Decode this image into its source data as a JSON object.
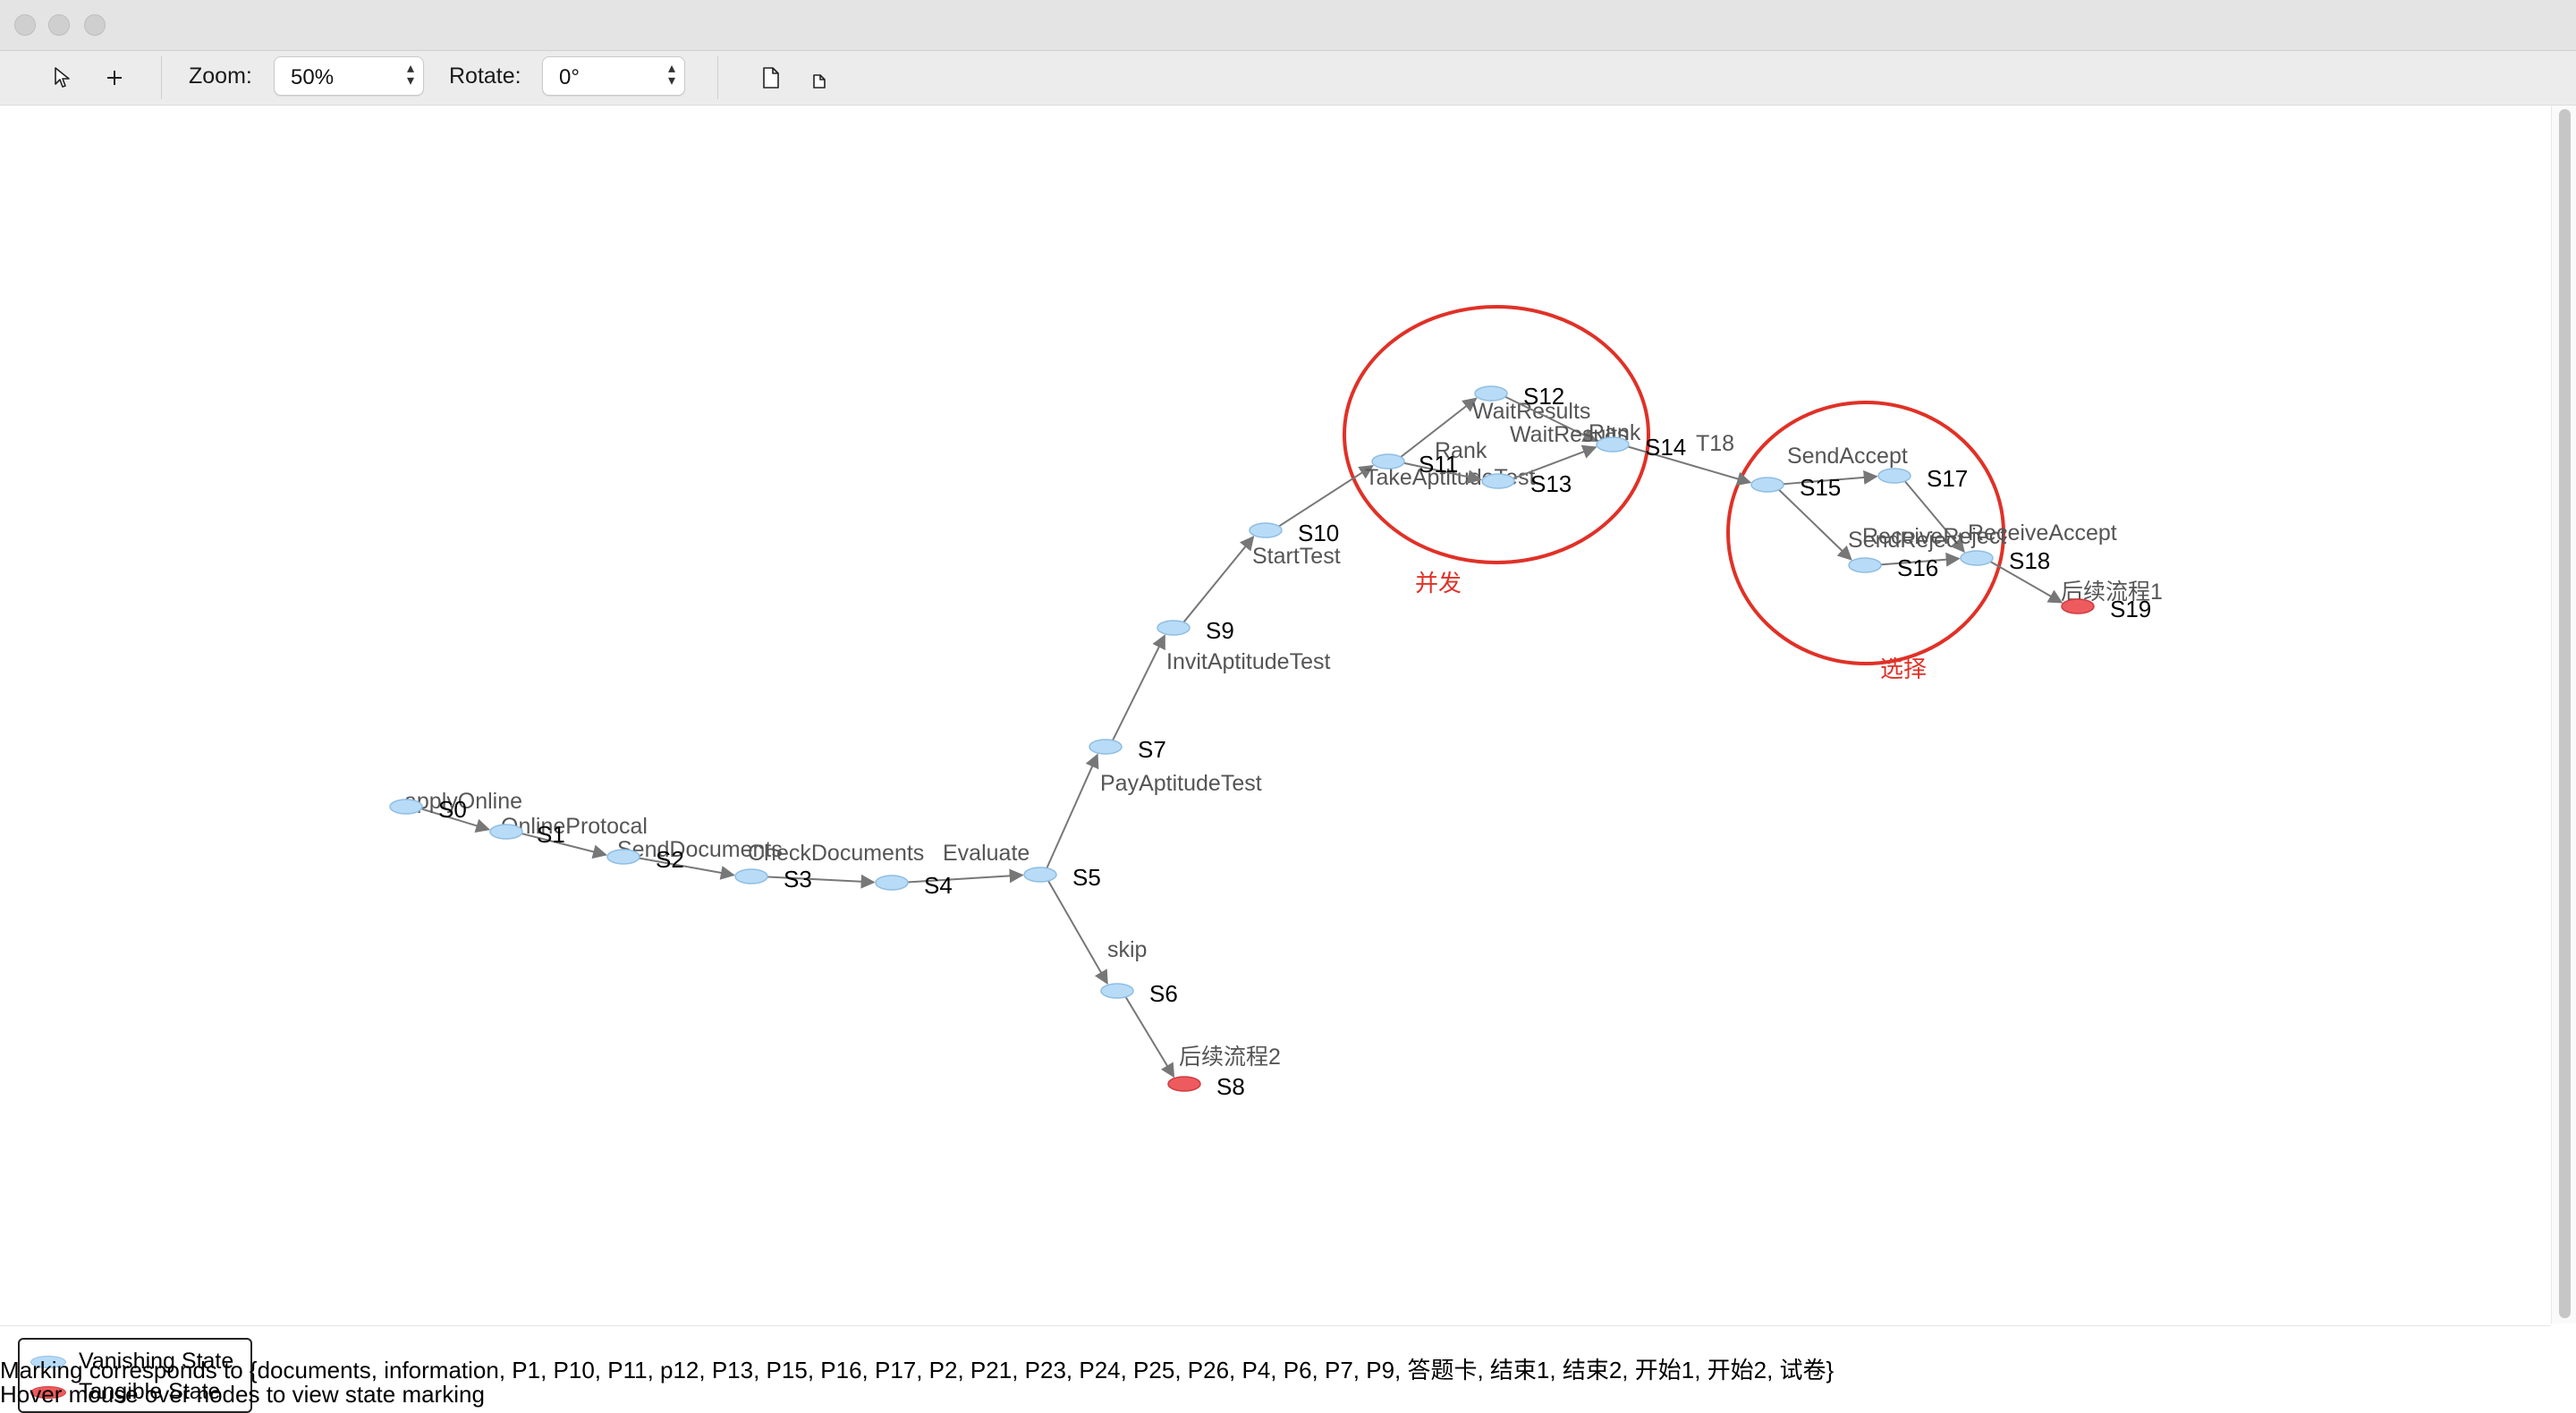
{
  "toolbar": {
    "zoom_label": "Zoom:",
    "zoom_value": "50%",
    "rotate_label": "Rotate:",
    "rotate_value": "0°",
    "icons": [
      "select-arrow-icon",
      "plus-icon",
      "page-icon",
      "small-page-icon"
    ]
  },
  "graph": {
    "nodes": [
      {
        "id": "S0",
        "type": "vanishing"
      },
      {
        "id": "S1",
        "type": "vanishing"
      },
      {
        "id": "S2",
        "type": "vanishing"
      },
      {
        "id": "S3",
        "type": "vanishing"
      },
      {
        "id": "S4",
        "type": "vanishing"
      },
      {
        "id": "S5",
        "type": "vanishing"
      },
      {
        "id": "S6",
        "type": "vanishing"
      },
      {
        "id": "S7",
        "type": "vanishing"
      },
      {
        "id": "S8",
        "type": "tangible"
      },
      {
        "id": "S9",
        "type": "vanishing"
      },
      {
        "id": "S10",
        "type": "vanishing"
      },
      {
        "id": "S11",
        "type": "vanishing"
      },
      {
        "id": "S12",
        "type": "vanishing"
      },
      {
        "id": "S13",
        "type": "vanishing"
      },
      {
        "id": "S14",
        "type": "vanishing"
      },
      {
        "id": "S15",
        "type": "vanishing"
      },
      {
        "id": "S16",
        "type": "vanishing"
      },
      {
        "id": "S17",
        "type": "vanishing"
      },
      {
        "id": "S18",
        "type": "vanishing"
      },
      {
        "id": "S19",
        "type": "tangible"
      }
    ],
    "edges": [
      {
        "from": "S0",
        "to": "S1",
        "label": "applyOnline"
      },
      {
        "from": "S1",
        "to": "S2",
        "label": "OnlineProtocal"
      },
      {
        "from": "S2",
        "to": "S3",
        "label": "SendDocuments"
      },
      {
        "from": "S3",
        "to": "S4",
        "label": "CheckDocuments"
      },
      {
        "from": "S4",
        "to": "S5",
        "label": "Evaluate"
      },
      {
        "from": "S5",
        "to": "S6",
        "label": "skip"
      },
      {
        "from": "S6",
        "to": "S8",
        "label": "后续流程2"
      },
      {
        "from": "S5",
        "to": "S7",
        "label": "PayAptitudeTest"
      },
      {
        "from": "S7",
        "to": "S9",
        "label": "InvitAptitudeTest"
      },
      {
        "from": "S9",
        "to": "S10",
        "label": "StartTest"
      },
      {
        "from": "S10",
        "to": "S11",
        "label": "TakeAptitudeTest"
      },
      {
        "from": "S11",
        "to": "S12",
        "label": "WaitResults"
      },
      {
        "from": "S11",
        "to": "S13",
        "label": "Rank"
      },
      {
        "from": "S12",
        "to": "S14",
        "label": "Rank"
      },
      {
        "from": "S13",
        "to": "S14",
        "label": "WaitResults"
      },
      {
        "from": "S14",
        "to": "S15",
        "label": "T18"
      },
      {
        "from": "S15",
        "to": "S17",
        "label": "SendAccept"
      },
      {
        "from": "S15",
        "to": "S16",
        "label": "SendReject"
      },
      {
        "from": "S17",
        "to": "S18",
        "label": "ReceiveAccept"
      },
      {
        "from": "S16",
        "to": "S18",
        "label": "ReceiveReject"
      },
      {
        "from": "S18",
        "to": "S19",
        "label": "后续流程1"
      }
    ],
    "annotations": [
      {
        "label": "并发",
        "color": "#e03127"
      },
      {
        "label": "选择",
        "color": "#e03127"
      }
    ],
    "colors": {
      "vanishing": "#b8dcf7",
      "tangible": "#ee5b5e",
      "edge": "#777777",
      "edge_label": "#555555"
    }
  },
  "legend": {
    "vanishing_label": "Vanishing State",
    "tangible_label": "Tangible State"
  },
  "status": {
    "marking": "Marking corresponds to {documents, information, P1, P10, P11, p12, P13, P15, P16, P17, P2, P21, P23, P24, P25, P26, P4, P6, P7, P9, 答题卡, 结束1, 结束2, 开始1, 开始2, 试卷}",
    "hint": "Hover mouse over nodes to view state marking"
  }
}
